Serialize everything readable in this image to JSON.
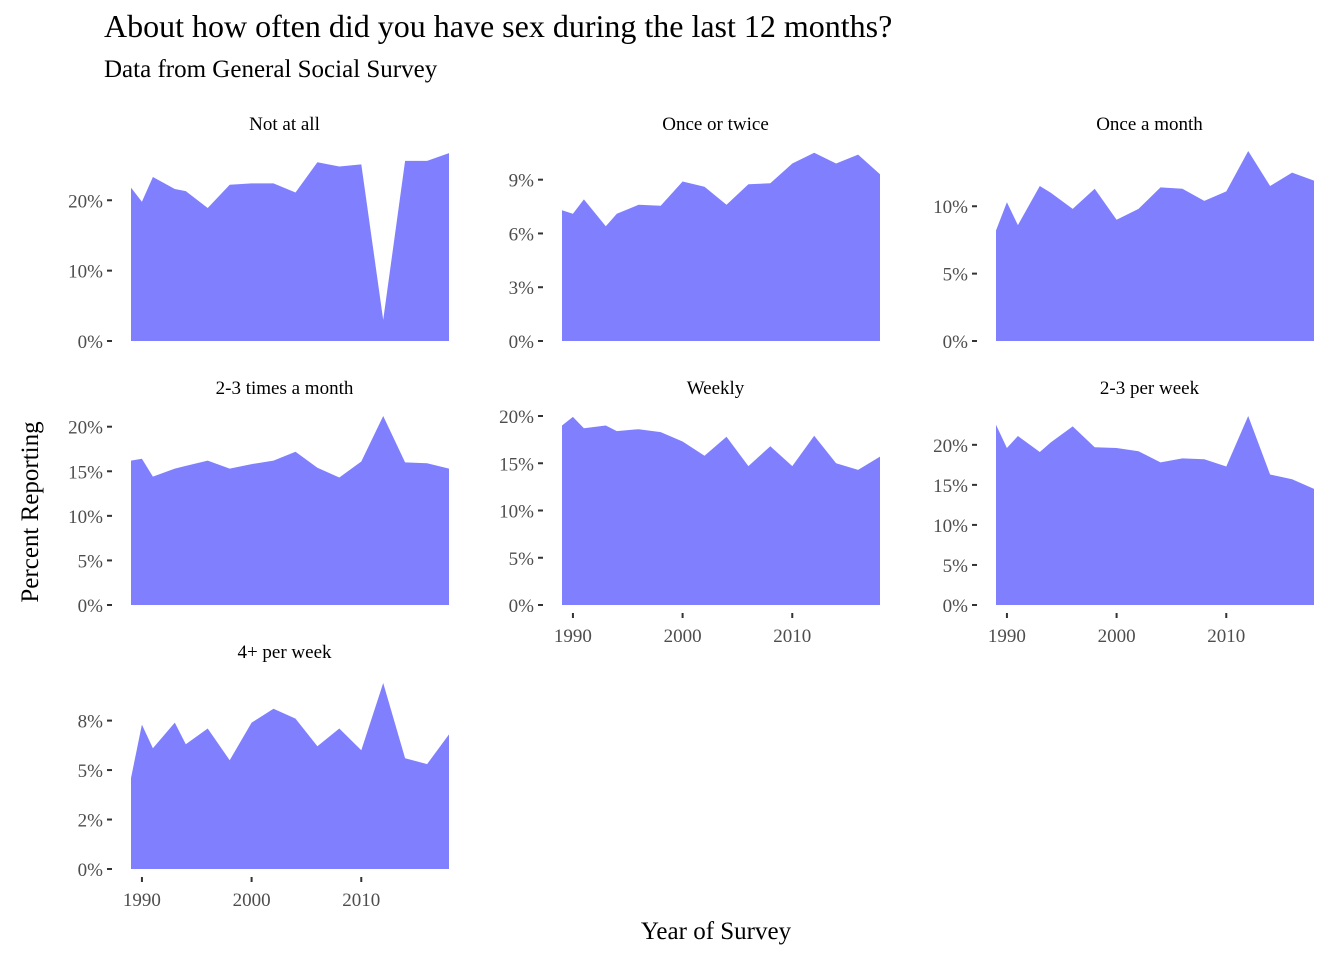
{
  "chart_data": {
    "type": "area",
    "title": "About how often did you have sex during the last 12 months?",
    "subtitle": "Data from General Social Survey",
    "xlabel": "Year of Survey",
    "ylabel": "Percent Reporting",
    "fill_color": "#8080ff",
    "grid": false,
    "x": [
      1989,
      1990,
      1991,
      1993,
      1994,
      1996,
      1998,
      2000,
      2002,
      2004,
      2006,
      2008,
      2010,
      2012,
      2014,
      2016,
      2018
    ],
    "xlim": [
      1988,
      2018
    ],
    "x_ticks": [
      "1990",
      "2000",
      "2010"
    ],
    "panels": [
      {
        "name": "Not at all",
        "values": [
          21.8,
          19.8,
          23.3,
          21.6,
          21.3,
          18.9,
          22.2,
          22.4,
          22.4,
          21.1,
          25.4,
          24.8,
          25.1,
          3.0,
          25.6,
          25.6,
          26.7
        ],
        "ylim": [
          0,
          27
        ],
        "y_ticks": [
          0,
          10,
          20
        ],
        "y_tick_labels": [
          "0%",
          "10%",
          "20%"
        ]
      },
      {
        "name": "Once or twice",
        "values": [
          7.3,
          7.1,
          7.9,
          6.4,
          7.1,
          7.6,
          7.55,
          8.9,
          8.6,
          7.6,
          8.75,
          8.8,
          9.9,
          10.5,
          9.9,
          10.4,
          9.3
        ],
        "ylim": [
          0,
          10.6
        ],
        "y_ticks": [
          0,
          3,
          6,
          9
        ],
        "y_tick_labels": [
          "0%",
          "3%",
          "6%",
          "9%"
        ]
      },
      {
        "name": "Once a month",
        "values": [
          8.2,
          10.3,
          8.6,
          11.5,
          11.0,
          9.8,
          11.3,
          9.0,
          9.8,
          11.4,
          11.3,
          10.4,
          11.1,
          14.1,
          11.5,
          12.5,
          11.9
        ],
        "ylim": [
          0,
          14.1
        ],
        "y_ticks": [
          0,
          5,
          10
        ],
        "y_tick_labels": [
          "0%",
          "5%",
          "10%"
        ]
      },
      {
        "name": "2-3 times a month",
        "values": [
          16.2,
          16.4,
          14.4,
          15.3,
          15.6,
          16.2,
          15.3,
          15.8,
          16.2,
          17.2,
          15.4,
          14.3,
          16.1,
          21.2,
          16.0,
          15.9,
          15.3
        ],
        "ylim": [
          0,
          21.2
        ],
        "y_ticks": [
          0,
          5,
          10,
          15,
          20
        ],
        "y_tick_labels": [
          "0%",
          "5%",
          "10%",
          "15%",
          "20%"
        ]
      },
      {
        "name": "Weekly",
        "values": [
          19.0,
          19.9,
          18.7,
          19.0,
          18.4,
          18.6,
          18.3,
          17.3,
          15.8,
          17.8,
          14.7,
          16.8,
          14.7,
          17.9,
          15.0,
          14.3,
          15.7
        ],
        "ylim": [
          0,
          20.0
        ],
        "y_ticks": [
          0,
          5,
          10,
          15,
          20
        ],
        "y_tick_labels": [
          "0%",
          "5%",
          "10%",
          "15%",
          "20%"
        ]
      },
      {
        "name": "2-3 per week",
        "values": [
          22.5,
          19.6,
          21.1,
          19.1,
          20.3,
          22.3,
          19.7,
          19.6,
          19.2,
          17.8,
          18.3,
          18.2,
          17.3,
          23.6,
          16.3,
          15.7,
          14.5
        ],
        "ylim": [
          0,
          23.6
        ],
        "y_ticks": [
          0,
          5,
          10,
          15,
          20
        ],
        "y_tick_labels": [
          "0%",
          "5%",
          "10%",
          "15%",
          "20%"
        ]
      },
      {
        "name": "4+ per week",
        "values": [
          4.6,
          7.3,
          6.1,
          7.4,
          6.3,
          7.1,
          5.5,
          7.4,
          8.1,
          7.6,
          6.2,
          7.1,
          6.0,
          9.4,
          5.6,
          5.3,
          6.8
        ],
        "ylim": [
          0,
          9.4
        ],
        "y_ticks": [
          0,
          2.5,
          5,
          7.5
        ],
        "y_tick_labels": [
          "0%",
          "2%",
          "5%",
          "8%"
        ]
      }
    ]
  }
}
